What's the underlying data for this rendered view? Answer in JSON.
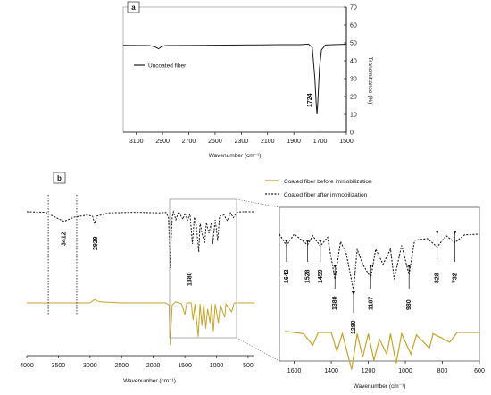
{
  "chart_data": [
    {
      "type": "line",
      "panel": "a",
      "xlabel": "Wavenumber (cm⁻¹)",
      "ylabel": "Transmittance (%)",
      "xlim": [
        3200,
        1500
      ],
      "ylim": [
        0,
        70
      ],
      "x_reversed": true,
      "xticks": [
        "3100",
        "2900",
        "2700",
        "2500",
        "2300",
        "2100",
        "1900",
        "1700",
        "1500"
      ],
      "yticks": [
        "0",
        "10",
        "20",
        "30",
        "40",
        "50",
        "60",
        "70"
      ],
      "legend_position": "left",
      "series": [
        {
          "name": "Uncoated fiber",
          "color": "#1a1a1a",
          "dash": "solid",
          "points": [
            [
              3200,
              48.6
            ],
            [
              3000,
              48.5
            ],
            [
              2960,
              47.8
            ],
            [
              2930,
              46.7
            ],
            [
              2910,
              47.8
            ],
            [
              2880,
              48.5
            ],
            [
              2600,
              48.6
            ],
            [
              2300,
              48.8
            ],
            [
              2150,
              48.9
            ],
            [
              2000,
              49.0
            ],
            [
              1850,
              49.0
            ],
            [
              1790,
              49.3
            ],
            [
              1760,
              47.5
            ],
            [
              1740,
              30
            ],
            [
              1730,
              16
            ],
            [
              1724,
              10
            ],
            [
              1718,
              16
            ],
            [
              1705,
              36
            ],
            [
              1690,
              46
            ],
            [
              1660,
              48.8
            ],
            [
              1600,
              49.0
            ],
            [
              1500,
              49.2
            ]
          ]
        }
      ],
      "annotations": [
        {
          "label": "1724",
          "x": 1724
        }
      ]
    },
    {
      "type": "line",
      "panel": "b",
      "xlabel": "Wavenumber (cm⁻¹)",
      "xlim": [
        4000,
        400
      ],
      "x_reversed": true,
      "xticks": [
        "4000",
        "3500",
        "3000",
        "2500",
        "2000",
        "1500",
        "1000",
        "500"
      ],
      "legend_position": "top-right",
      "series": [
        {
          "name": "Coated fiber before immobilization",
          "color": "#c9a227",
          "dash": "solid",
          "points": [
            [
              4000,
              0.6
            ],
            [
              3000,
              0.6
            ],
            [
              2930,
              1.2
            ],
            [
              2850,
              0.8
            ],
            [
              2500,
              0.6
            ],
            [
              1800,
              0.6
            ],
            [
              1750,
              0.2
            ],
            [
              1740,
              -4
            ],
            [
              1730,
              -7
            ],
            [
              1720,
              -4
            ],
            [
              1700,
              0.2
            ],
            [
              1650,
              0.8
            ],
            [
              1550,
              0.4
            ],
            [
              1500,
              -1.5
            ],
            [
              1470,
              0.6
            ],
            [
              1400,
              0.6
            ],
            [
              1370,
              -2.5
            ],
            [
              1340,
              0.4
            ],
            [
              1290,
              -5.5
            ],
            [
              1260,
              0.4
            ],
            [
              1230,
              -3.5
            ],
            [
              1200,
              0.4
            ],
            [
              1170,
              -4
            ],
            [
              1140,
              -0.5
            ],
            [
              1100,
              -3
            ],
            [
              1080,
              0.4
            ],
            [
              1050,
              -4.5
            ],
            [
              1020,
              0.4
            ],
            [
              970,
              -3
            ],
            [
              940,
              0.2
            ],
            [
              870,
              -2
            ],
            [
              850,
              0.4
            ],
            [
              760,
              -1
            ],
            [
              720,
              0.6
            ],
            [
              600,
              0.6
            ],
            [
              400,
              0.6
            ]
          ]
        },
        {
          "name": "Coated fiber after immobilization",
          "color": "#1a1a1a",
          "dash": "dashed",
          "points": [
            [
              4000,
              9.0
            ],
            [
              3700,
              8.9
            ],
            [
              3550,
              8.0
            ],
            [
              3412,
              7.2
            ],
            [
              3250,
              8.0
            ],
            [
              3050,
              8.4
            ],
            [
              2960,
              8.2
            ],
            [
              2929,
              6.8
            ],
            [
              2890,
              8.2
            ],
            [
              2700,
              8.8
            ],
            [
              2300,
              8.9
            ],
            [
              1900,
              8.8
            ],
            [
              1800,
              8.9
            ],
            [
              1760,
              8.0
            ],
            [
              1740,
              1.5
            ],
            [
              1730,
              -1.5
            ],
            [
              1720,
              3.0
            ],
            [
              1700,
              8.0
            ],
            [
              1680,
              9.0
            ],
            [
              1642,
              7.5
            ],
            [
              1600,
              9.0
            ],
            [
              1528,
              7.6
            ],
            [
              1500,
              8.8
            ],
            [
              1459,
              7.4
            ],
            [
              1420,
              8.6
            ],
            [
              1380,
              3.0
            ],
            [
              1350,
              8.0
            ],
            [
              1320,
              6.5
            ],
            [
              1280,
              1.5
            ],
            [
              1260,
              7.0
            ],
            [
              1230,
              5.0
            ],
            [
              1187,
              3.2
            ],
            [
              1160,
              7.0
            ],
            [
              1120,
              5.0
            ],
            [
              1080,
              7.0
            ],
            [
              1060,
              3.0
            ],
            [
              1020,
              7.5
            ],
            [
              980,
              3.6
            ],
            [
              950,
              8.2
            ],
            [
              880,
              8.4
            ],
            [
              828,
              7.3
            ],
            [
              780,
              8.8
            ],
            [
              732,
              7.9
            ],
            [
              680,
              8.9
            ],
            [
              600,
              9.0
            ],
            [
              400,
              9.0
            ]
          ]
        }
      ],
      "annotations": [
        {
          "label": "3412",
          "x": 3412
        },
        {
          "label": "2929",
          "x": 2929
        },
        {
          "label": "1380",
          "x": 1380
        }
      ]
    },
    {
      "type": "line",
      "panel": "b-inset",
      "xlabel": "Wavenumber (cm⁻¹)",
      "xlim": [
        1680,
        600
      ],
      "x_reversed": true,
      "xticks": [
        "1600",
        "1400",
        "1200",
        "1000",
        "800",
        "600"
      ],
      "annotations": [
        {
          "label": "1642",
          "x": 1642
        },
        {
          "label": "1528",
          "x": 1528
        },
        {
          "label": "1459",
          "x": 1459
        },
        {
          "label": "1380",
          "x": 1380
        },
        {
          "label": "1280",
          "x": 1280
        },
        {
          "label": "1187",
          "x": 1187
        },
        {
          "label": "980",
          "x": 980
        },
        {
          "label": "828",
          "x": 828
        },
        {
          "label": "732",
          "x": 732
        }
      ]
    }
  ]
}
